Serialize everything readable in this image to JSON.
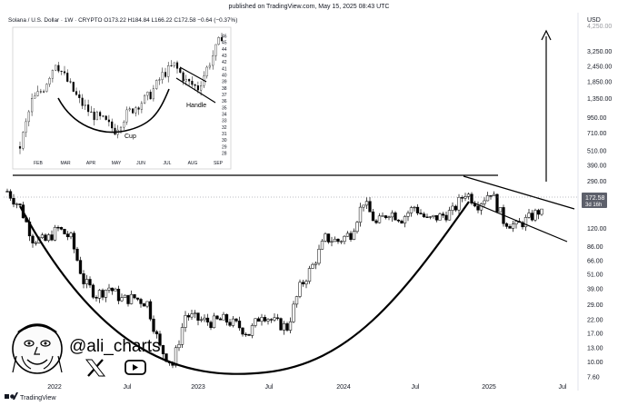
{
  "header": {
    "published": "published on TradingView.com, May 15, 2025 08:43 UTC",
    "symbol_line": "Solana / U.S. Dollar · 1W · CRYPTO  O173.22  H184.84  L166.22  C172.58  −0.64 (−0.37%)"
  },
  "price_axis": {
    "currency": "USD",
    "top_cut_label": "4,250.00",
    "current_price": "172.58",
    "countdown": "3d 16h"
  },
  "brand": {
    "name": "TradingView",
    "handle": "@ali_charts",
    "x_icon": "x-logo-icon",
    "youtube_icon": "youtube-play-icon"
  },
  "inset": {
    "annotations": {
      "cup": "Cup",
      "handle": "Handle"
    }
  },
  "colors": {
    "up": "#ffffff",
    "down": "#000000",
    "line": "#000000",
    "price_tag": "#5d606b"
  },
  "chart_data": [
    {
      "type": "candlestick",
      "description_scale": "log",
      "x_ticks": [
        "2022",
        "Jul",
        "2023",
        "Jul",
        "2024",
        "Jul",
        "2025",
        "Jul"
      ],
      "y_ticks": [
        4250,
        3250,
        2450,
        1850,
        1350,
        950,
        710,
        510,
        390,
        290,
        210,
        120,
        86,
        66,
        51,
        39,
        29,
        22,
        17,
        13,
        10,
        7.6
      ],
      "ylim": [
        6.5,
        4600
      ],
      "last_close": 172.58,
      "annotations": [
        "Cup (rounded bottom 2022–2024)",
        "Handle (descending channel 2025)",
        "Breakout target arrow toward ~4,250"
      ],
      "close_path": [
        [
          "2021-11",
          240
        ],
        [
          "2021-12",
          180
        ],
        [
          "2022-01",
          100
        ],
        [
          "2022-02",
          95
        ],
        [
          "2022-03",
          120
        ],
        [
          "2022-04",
          100
        ],
        [
          "2022-05",
          45
        ],
        [
          "2022-06",
          35
        ],
        [
          "2022-07",
          40
        ],
        [
          "2022-08",
          32
        ],
        [
          "2022-09",
          33
        ],
        [
          "2022-10",
          30
        ],
        [
          "2022-11",
          13
        ],
        [
          "2022-12",
          9.5
        ],
        [
          "2023-01",
          24
        ],
        [
          "2023-02",
          22
        ],
        [
          "2023-03",
          21
        ],
        [
          "2023-04",
          22
        ],
        [
          "2023-05",
          20
        ],
        [
          "2023-06",
          17
        ],
        [
          "2023-07",
          25
        ],
        [
          "2023-08",
          21
        ],
        [
          "2023-09",
          19
        ],
        [
          "2023-10",
          40
        ],
        [
          "2023-11",
          60
        ],
        [
          "2023-12",
          100
        ],
        [
          "2024-01",
          95
        ],
        [
          "2024-02",
          110
        ],
        [
          "2024-03",
          200
        ],
        [
          "2024-04",
          130
        ],
        [
          "2024-05",
          165
        ],
        [
          "2024-06",
          145
        ],
        [
          "2024-07",
          180
        ],
        [
          "2024-08",
          140
        ],
        [
          "2024-09",
          150
        ],
        [
          "2024-10",
          165
        ],
        [
          "2024-11",
          235
        ],
        [
          "2024-12",
          190
        ],
        [
          "2025-01",
          240
        ],
        [
          "2025-02",
          140
        ],
        [
          "2025-03",
          125
        ],
        [
          "2025-04",
          145
        ],
        [
          "2025-05",
          172.58
        ]
      ]
    },
    {
      "type": "candlestick",
      "x_ticks": [
        "FEB",
        "MAR",
        "APR",
        "MAY",
        "JUN",
        "JUL",
        "AUG",
        "SEP"
      ],
      "y_ticks": [
        28,
        29,
        30,
        31,
        32,
        33,
        34,
        35,
        36,
        37,
        38,
        39,
        40,
        41,
        42,
        43,
        44,
        45,
        46
      ],
      "ylim": [
        27.5,
        46.5
      ],
      "annotations": [
        "Cup",
        "Handle"
      ],
      "close_path": [
        [
          "FEB",
          29
        ],
        [
          "FEB",
          36
        ],
        [
          "MAR",
          38
        ],
        [
          "MAR",
          42
        ],
        [
          "MAR",
          39
        ],
        [
          "APR",
          36
        ],
        [
          "APR",
          34
        ],
        [
          "MAY",
          33
        ],
        [
          "MAY",
          31.5
        ],
        [
          "JUN",
          34
        ],
        [
          "JUN",
          35.5
        ],
        [
          "JUL",
          37
        ],
        [
          "JUL",
          40
        ],
        [
          "AUG",
          41.5
        ],
        [
          "AUG",
          39
        ],
        [
          "AUG",
          38
        ],
        [
          "SEP",
          42
        ],
        [
          "SEP",
          46
        ]
      ]
    }
  ]
}
